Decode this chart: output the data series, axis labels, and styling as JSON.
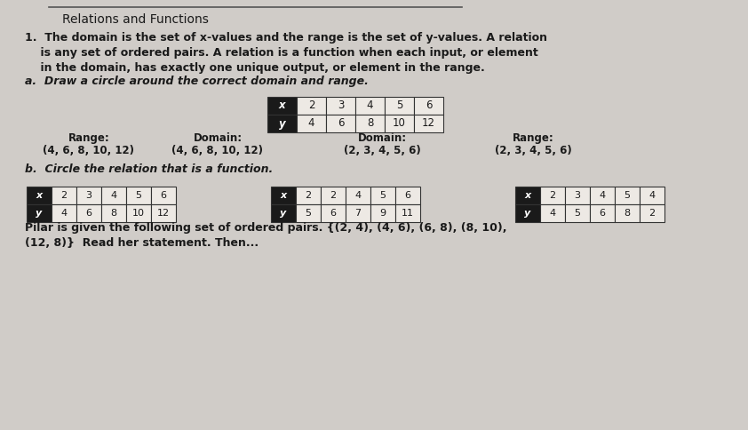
{
  "title": "Relations and Functions",
  "bg_color": "#d0ccc8",
  "text_color": "#1a1a1a",
  "line1": "1.  The domain is the set of x-values and the range is the set of y-values. A relation",
  "line2": "    is any set of ordered pairs. A relation is a function when each input, or element",
  "line3": "    in the domain, has exactly one unique output, or element in the range.",
  "part_a_label": "a.  Draw a circle around the correct domain and range.",
  "main_table_x_vals": [
    "x",
    "2",
    "3",
    "4",
    "5",
    "6"
  ],
  "main_table_y_vals": [
    "y",
    "4",
    "6",
    "8",
    "10",
    "12"
  ],
  "option1_l1": "Range:",
  "option1_l2": "(4, 6, 8, 10, 12)",
  "option2_l1": "Domain:",
  "option2_l2": "(4, 6, 8, 10, 12)",
  "option3_l1": "Domain:",
  "option3_l2": "(2, 3, 4, 5, 6)",
  "option4_l1": "Range:",
  "option4_l2": "(2, 3, 4, 5, 6)",
  "part_b_label": "b.  Circle the relation that is a function.",
  "table1_x": [
    "x",
    "2",
    "3",
    "4",
    "5",
    "6"
  ],
  "table1_y": [
    "y",
    "4",
    "6",
    "8",
    "10",
    "12"
  ],
  "table2_x": [
    "x",
    "2",
    "2",
    "4",
    "5",
    "6"
  ],
  "table2_y": [
    "y",
    "5",
    "6",
    "7",
    "9",
    "11"
  ],
  "table3_x": [
    "x",
    "2",
    "3",
    "4",
    "5",
    "4"
  ],
  "table3_y": [
    "y",
    "4",
    "5",
    "6",
    "8",
    "2"
  ],
  "pilar_text": "Pilar is given the following set of ordered pairs. {(2, 4), (4, 6), (6, 8), (8, 10),",
  "pilar_text2": "(12, 8)}  Read her statement. Then...",
  "table_fill_dark": "#1a1a1a",
  "table_fill_light": "#ede9e4",
  "table_border": "#333333",
  "line_color": "#555555"
}
